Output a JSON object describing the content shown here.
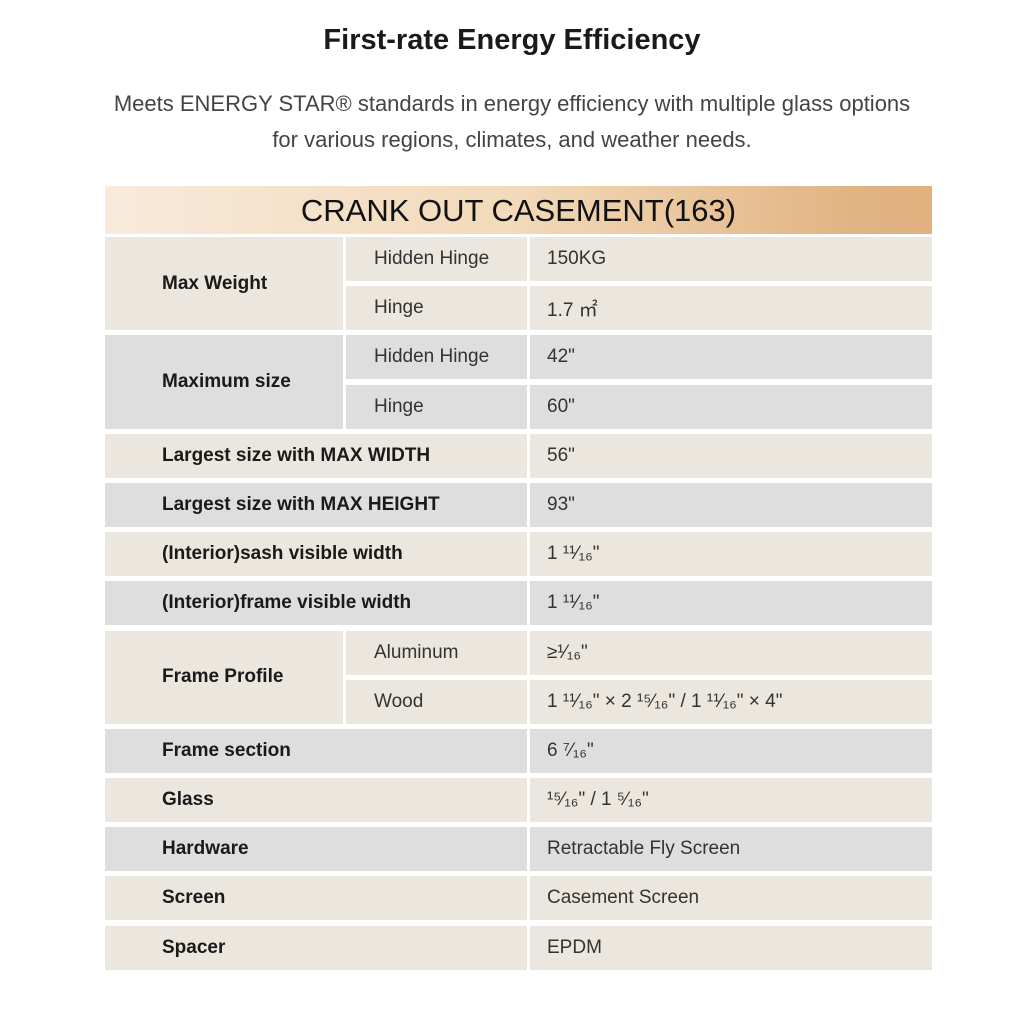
{
  "title": "First-rate Energy Efficiency",
  "subtitle": "Meets ENERGY STAR® standards in energy efficiency with multiple glass options for various regions, climates, and weather needs.",
  "table_title": "CRANK OUT CASEMENT(163)",
  "rows": [
    {
      "label": "Max Weight",
      "tone": "b",
      "subs": [
        {
          "label": "Hidden Hinge",
          "value": "150KG"
        },
        {
          "label": "Hinge",
          "value": "1.7 ㎡"
        }
      ]
    },
    {
      "label": "Maximum size",
      "tone": "g",
      "subs": [
        {
          "label": "Hidden Hinge",
          "value": "42\""
        },
        {
          "label": "Hinge",
          "value": "60\""
        }
      ]
    },
    {
      "label": "Largest size with MAX WIDTH",
      "tone": "b",
      "value": "56\""
    },
    {
      "label": "Largest size with MAX HEIGHT",
      "tone": "g",
      "value": "93\""
    },
    {
      "label": "(Interior)sash visible width",
      "tone": "b",
      "value": "1 ¹¹⁄₁₆\""
    },
    {
      "label": "(Interior)frame visible width",
      "tone": "g",
      "value": "1 ¹¹⁄₁₆\""
    },
    {
      "label": "Frame Profile",
      "tone": "b",
      "subs": [
        {
          "label": "Aluminum",
          "value": "≥¹⁄₁₆\""
        },
        {
          "label": "Wood",
          "value": "1 ¹¹⁄₁₆\" × 2 ¹⁵⁄₁₆\"  /  1 ¹¹⁄₁₆\" × 4\""
        }
      ]
    },
    {
      "label": "Frame section",
      "tone": "g",
      "value": "6 ⁷⁄₁₆\""
    },
    {
      "label": "Glass",
      "tone": "b",
      "value": "¹⁵⁄₁₆\" / 1 ⁵⁄₁₆\""
    },
    {
      "label": "Hardware",
      "tone": "g",
      "value": "Retractable Fly Screen"
    },
    {
      "label": "Screen",
      "tone": "b",
      "value": "Casement Screen"
    },
    {
      "label": "Spacer",
      "tone": "b",
      "value": "EPDM"
    }
  ]
}
